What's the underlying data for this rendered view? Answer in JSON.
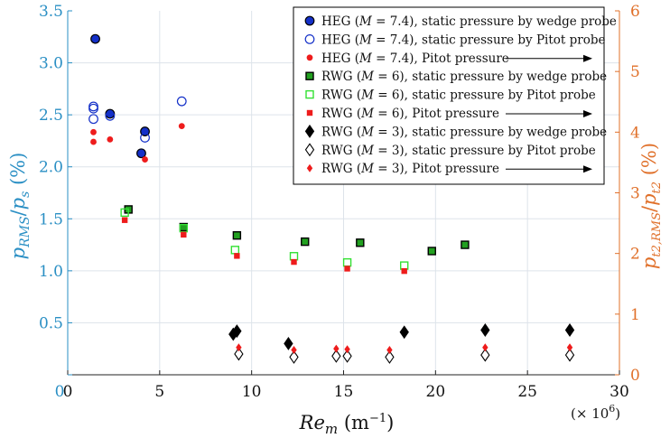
{
  "chart_data": {
    "type": "scatter",
    "xlabel": "Re_m (m⁻¹)",
    "xlabel_main": "Re",
    "xlabel_sub": "m",
    "xlabel_units": " (m",
    "xlabel_units_sup": "−1",
    "xlabel_units_close": ")",
    "x_multiplier": "(× 10",
    "x_multiplier_sup": "6",
    "x_multiplier_close": ")",
    "ylabel_left": "p_RMS/p_s (%)",
    "ylabel_left_parts": [
      "p",
      "RMS",
      "/",
      "p",
      "s",
      " (%)"
    ],
    "ylabel_right": "p_t2,RMS/p_t2 (%)",
    "ylabel_right_parts": [
      "p",
      "t2,RMS",
      "/",
      "p",
      "t2",
      " (%)"
    ],
    "xlim": [
      0,
      30
    ],
    "ylim_left": [
      0,
      3.5
    ],
    "ylim_right": [
      0,
      6
    ],
    "x_ticks": [
      "0",
      "5",
      "10",
      "15",
      "20",
      "25",
      "30"
    ],
    "y_left_ticks": [
      "0",
      "0.5",
      "1.0",
      "1.5",
      "2.0",
      "2.5",
      "3.0",
      "3.5"
    ],
    "y_right_ticks": [
      "0",
      "1",
      "2",
      "3",
      "4",
      "5",
      "6"
    ],
    "grid": true,
    "legend_position": "top-right",
    "colors": {
      "left_axis": "#2a8fc4",
      "right_axis": "#e0702a",
      "blue": "#1430c8",
      "green": "#22a020",
      "light_green": "#33e033",
      "red": "#ee1c1c",
      "black": "#000000"
    },
    "series": [
      {
        "name": "HEG (M = 7.4), static pressure by wedge probe",
        "marker": "circle",
        "fill": "#1430c8",
        "stroke": "#000000",
        "axis": "left",
        "x": [
          1.5,
          2.3,
          4.0,
          4.2
        ],
        "y": [
          3.23,
          2.51,
          2.13,
          2.34
        ]
      },
      {
        "name": "HEG (M = 7.4), static pressure by Pitot probe",
        "marker": "circle",
        "fill": "none",
        "stroke": "#1430c8",
        "axis": "left",
        "x": [
          1.4,
          1.4,
          1.4,
          2.3,
          4.2,
          6.2
        ],
        "y": [
          2.58,
          2.56,
          2.46,
          2.49,
          2.28,
          2.63
        ]
      },
      {
        "name": "HEG (M = 7.4), Pitot pressure",
        "marker": "dot",
        "fill": "#ee1c1c",
        "stroke": "none",
        "axis": "right",
        "x": [
          1.4,
          1.4,
          2.3,
          4.2,
          6.2
        ],
        "y": [
          4.0,
          3.84,
          3.88,
          3.55,
          4.1
        ]
      },
      {
        "name": "RWG (M = 6), static pressure by wedge probe",
        "marker": "square",
        "fill": "#22a020",
        "stroke": "#000000",
        "axis": "left",
        "x": [
          3.3,
          6.3,
          9.2,
          12.9,
          15.9,
          19.8,
          21.6
        ],
        "y": [
          1.59,
          1.42,
          1.34,
          1.28,
          1.27,
          1.19,
          1.25
        ]
      },
      {
        "name": "RWG (M = 6), static pressure by Pitot probe",
        "marker": "square",
        "fill": "none",
        "stroke": "#33e033",
        "axis": "left",
        "x": [
          3.1,
          6.3,
          9.1,
          12.3,
          15.2,
          18.3
        ],
        "y": [
          1.56,
          1.41,
          1.2,
          1.14,
          1.08,
          1.05
        ]
      },
      {
        "name": "RWG (M = 6), Pitot pressure",
        "marker": "smallsquare",
        "fill": "#ee1c1c",
        "stroke": "none",
        "axis": "right",
        "x": [
          3.1,
          6.3,
          9.2,
          12.3,
          15.2,
          18.3
        ],
        "y": [
          2.55,
          2.31,
          1.96,
          1.86,
          1.75,
          1.71
        ]
      },
      {
        "name": "RWG (M = 3), static pressure by wedge probe",
        "marker": "diamond",
        "fill": "#000000",
        "stroke": "#000000",
        "axis": "left",
        "x": [
          9.0,
          9.2,
          12.0,
          18.3,
          22.7,
          27.3
        ],
        "y": [
          0.39,
          0.42,
          0.3,
          0.41,
          0.43,
          0.43
        ]
      },
      {
        "name": "RWG (M = 3), static pressure by Pitot probe",
        "marker": "diamond",
        "fill": "#ffffff",
        "stroke": "#000000",
        "axis": "left",
        "x": [
          9.3,
          12.3,
          14.6,
          15.2,
          17.5,
          22.7,
          27.3
        ],
        "y": [
          0.2,
          0.17,
          0.18,
          0.18,
          0.17,
          0.19,
          0.19
        ]
      },
      {
        "name": "RWG (M = 3), Pitot pressure",
        "marker": "smalldiamond",
        "fill": "#ee1c1c",
        "stroke": "none",
        "axis": "right",
        "x": [
          9.3,
          12.3,
          14.6,
          15.2,
          17.5,
          22.7,
          27.3
        ],
        "y": [
          0.45,
          0.41,
          0.43,
          0.42,
          0.41,
          0.45,
          0.45
        ]
      }
    ],
    "legend": [
      {
        "prefix": "HEG (",
        "var": "M",
        "suffix": " = 7.4), static pressure by wedge probe",
        "series": 0,
        "arrow": false
      },
      {
        "prefix": "HEG (",
        "var": "M",
        "suffix": " = 7.4), static pressure by Pitot probe",
        "series": 1,
        "arrow": false
      },
      {
        "prefix": "HEG (",
        "var": "M",
        "suffix": " = 7.4), Pitot pressure",
        "series": 2,
        "arrow": true
      },
      {
        "prefix": "RWG (",
        "var": "M",
        "suffix": " = 6), static pressure by wedge probe",
        "series": 3,
        "arrow": false
      },
      {
        "prefix": "RWG (",
        "var": "M",
        "suffix": " = 6), static pressure by Pitot probe",
        "series": 4,
        "arrow": false
      },
      {
        "prefix": "RWG (",
        "var": "M",
        "suffix": " = 6), Pitot pressure",
        "series": 5,
        "arrow": true
      },
      {
        "prefix": "RWG (",
        "var": "M",
        "suffix": " = 3), static pressure by wedge probe",
        "series": 6,
        "arrow": false
      },
      {
        "prefix": "RWG (",
        "var": "M",
        "suffix": " = 3), static pressure by Pitot probe",
        "series": 7,
        "arrow": false
      },
      {
        "prefix": "RWG (",
        "var": "M",
        "suffix": " = 3), Pitot pressure",
        "series": 8,
        "arrow": true
      }
    ]
  }
}
